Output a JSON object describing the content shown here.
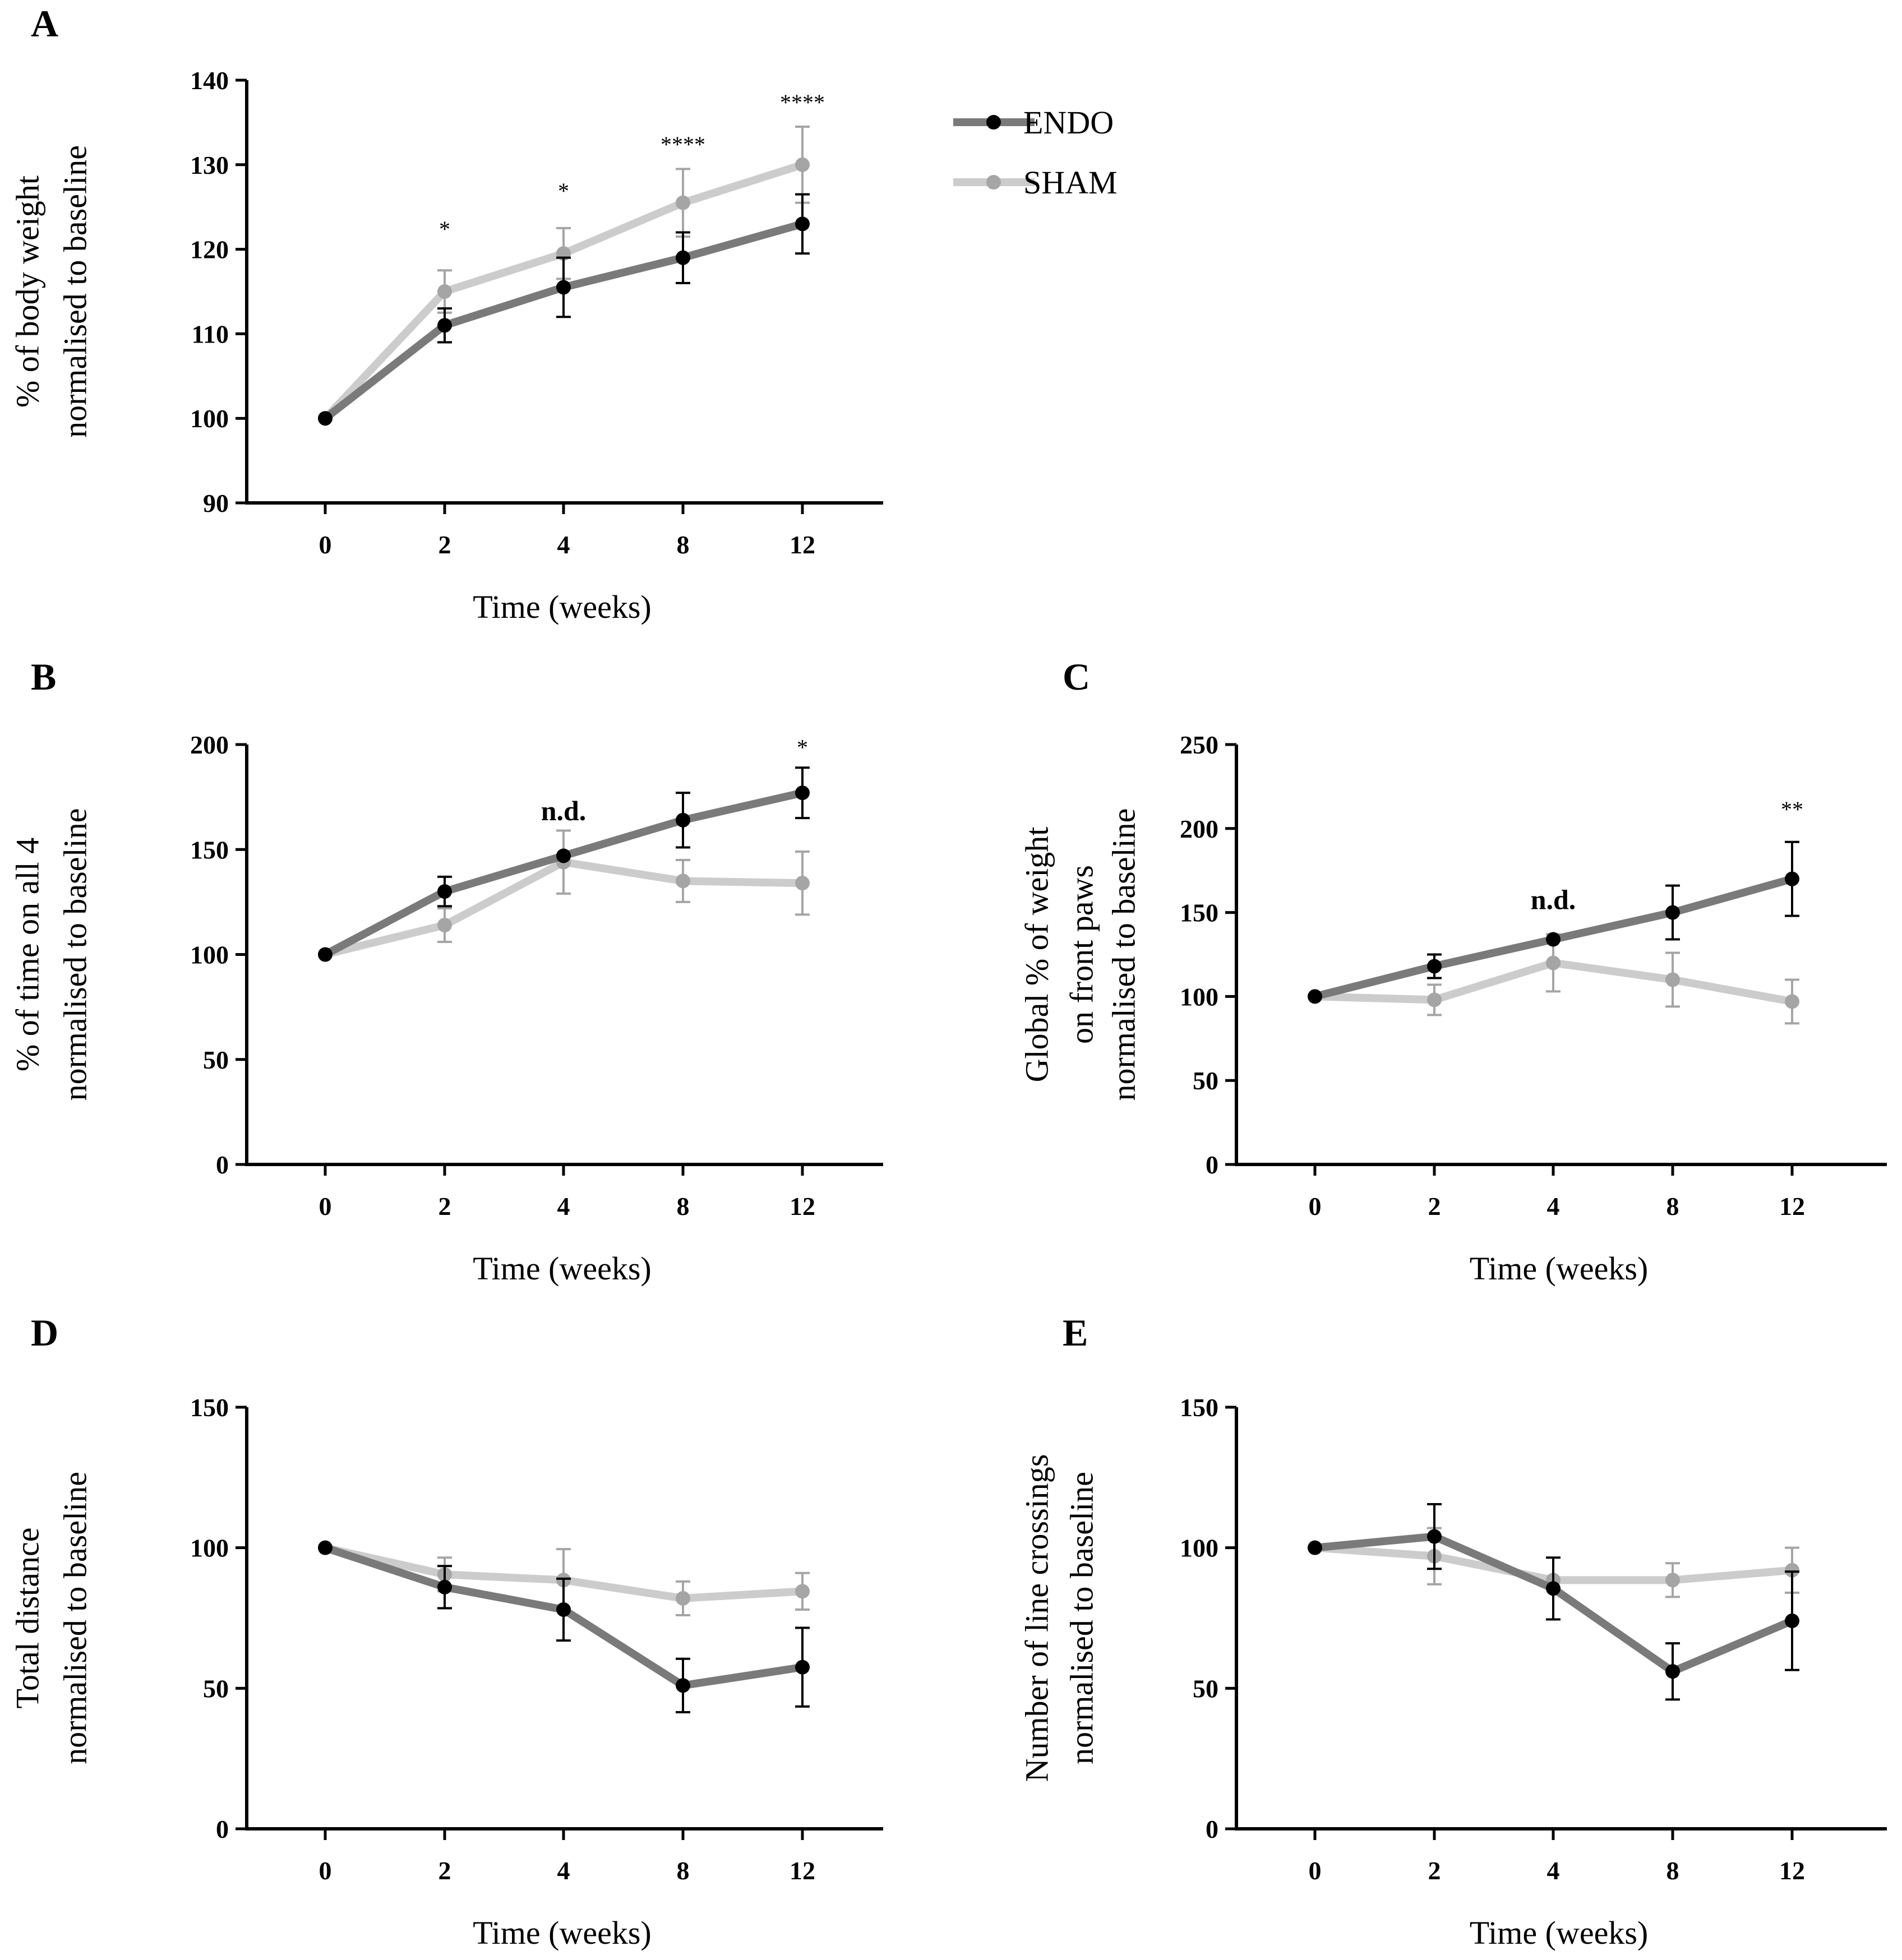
{
  "legend": {
    "items": [
      {
        "name": "ENDO",
        "color": "#7a7a7a",
        "marker": "#000000"
      },
      {
        "name": "SHAM",
        "color": "#cccccc",
        "marker": "#a5a5a5"
      }
    ]
  },
  "chart_data": [
    {
      "panel": "A",
      "type": "line",
      "categories": [
        "0",
        "2",
        "4",
        "8",
        "12"
      ],
      "xlabel": "Time (weeks)",
      "ylabel": [
        "% of body weight",
        "normalised to baseline"
      ],
      "ylim": [
        90,
        140
      ],
      "yticks": [
        90,
        100,
        110,
        120,
        130,
        140
      ],
      "series": [
        {
          "name": "ENDO",
          "values": [
            100,
            111,
            115.5,
            119,
            123
          ],
          "errors": [
            0,
            2,
            3.5,
            3,
            3.5
          ]
        },
        {
          "name": "SHAM",
          "values": [
            100,
            115,
            119.5,
            125.5,
            130
          ],
          "errors": [
            0,
            2.5,
            3,
            4,
            4.5
          ]
        }
      ],
      "annotations": [
        {
          "x": "2",
          "text": "*",
          "y": 121.5,
          "kind": "sig"
        },
        {
          "x": "4",
          "text": "*",
          "y": 126,
          "kind": "sig"
        },
        {
          "x": "8",
          "text": "****",
          "y": 131.5,
          "kind": "sig"
        },
        {
          "x": "12",
          "text": "****",
          "y": 136.5,
          "kind": "sig"
        }
      ]
    },
    {
      "panel": "B",
      "type": "line",
      "categories": [
        "0",
        "2",
        "4",
        "8",
        "12"
      ],
      "xlabel": "Time (weeks)",
      "ylabel": [
        "% of time on all 4",
        "normalised to baseline"
      ],
      "ylim": [
        0,
        200
      ],
      "yticks": [
        0,
        50,
        100,
        150,
        200
      ],
      "series": [
        {
          "name": "ENDO",
          "values": [
            100,
            130,
            147,
            164,
            177
          ],
          "errors": [
            0,
            7,
            0,
            13,
            12
          ]
        },
        {
          "name": "SHAM",
          "values": [
            100,
            114,
            144,
            135,
            134
          ],
          "errors": [
            0,
            8,
            15,
            10,
            15
          ]
        }
      ],
      "annotations": [
        {
          "x": "4",
          "text": "n.d.",
          "y": 164,
          "kind": "nd"
        },
        {
          "x": "12",
          "text": "*",
          "y": 195,
          "kind": "sig"
        }
      ]
    },
    {
      "panel": "C",
      "type": "line",
      "categories": [
        "0",
        "2",
        "4",
        "8",
        "12"
      ],
      "xlabel": "Time (weeks)",
      "ylabel": [
        "Global % of weight",
        "on front paws",
        "normalised to baseline"
      ],
      "ylim": [
        0,
        250
      ],
      "yticks": [
        0,
        50,
        100,
        150,
        200,
        250
      ],
      "series": [
        {
          "name": "ENDO",
          "values": [
            100,
            118,
            134,
            150,
            170
          ],
          "errors": [
            0,
            7,
            0,
            16,
            22
          ]
        },
        {
          "name": "SHAM",
          "values": [
            100,
            98,
            120,
            110,
            97
          ],
          "errors": [
            0,
            9,
            17,
            16,
            13
          ]
        }
      ],
      "annotations": [
        {
          "x": "4",
          "text": "n.d.",
          "y": 152,
          "kind": "nd"
        },
        {
          "x": "12",
          "text": "**",
          "y": 207,
          "kind": "sig"
        }
      ]
    },
    {
      "panel": "D",
      "type": "line",
      "categories": [
        "0",
        "2",
        "4",
        "8",
        "12"
      ],
      "xlabel": "Time (weeks)",
      "ylabel": [
        "Total distance",
        "normalised to baseline"
      ],
      "ylim": [
        0,
        150
      ],
      "yticks": [
        0,
        50,
        100,
        150
      ],
      "series": [
        {
          "name": "ENDO",
          "values": [
            100,
            86,
            78,
            51,
            57.5
          ],
          "errors": [
            0,
            7.5,
            11,
            9.5,
            14
          ]
        },
        {
          "name": "SHAM",
          "values": [
            100,
            90.5,
            88.5,
            82,
            84.5
          ],
          "errors": [
            0,
            6,
            11,
            6,
            6.5
          ]
        }
      ],
      "annotations": []
    },
    {
      "panel": "E",
      "type": "line",
      "categories": [
        "0",
        "2",
        "4",
        "8",
        "12"
      ],
      "xlabel": "Time (weeks)",
      "ylabel": [
        "Number of line crossings",
        "normalised to baseline"
      ],
      "ylim": [
        0,
        150
      ],
      "yticks": [
        0,
        50,
        100,
        150
      ],
      "series": [
        {
          "name": "ENDO",
          "values": [
            100,
            104,
            85.5,
            56,
            74
          ],
          "errors": [
            0,
            11.5,
            11,
            10,
            17.5
          ]
        },
        {
          "name": "SHAM",
          "values": [
            100,
            97,
            88.5,
            88.5,
            92
          ],
          "errors": [
            0,
            10,
            0,
            6,
            8
          ]
        }
      ],
      "annotations": []
    }
  ]
}
